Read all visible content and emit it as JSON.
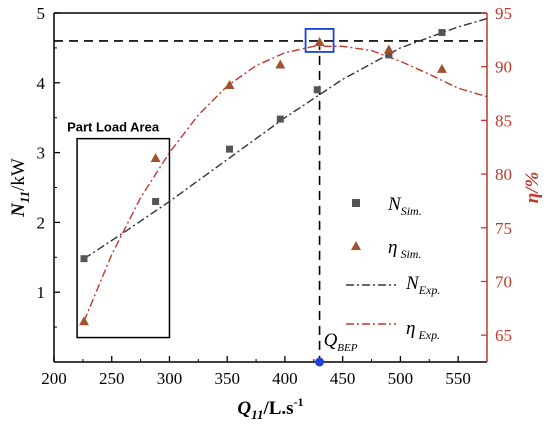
{
  "colors": {
    "left_axis": "#000000",
    "right_axis": "#c0392b",
    "n_marker": "#555555",
    "eta_marker": "#a0522d",
    "n_curve": "#333333",
    "eta_curve": "#c0392b",
    "bep_box": "#1f3fd6",
    "bep_dot": "#1f3fd6"
  },
  "chart_data": {
    "type": "line",
    "xlabel": "Q11/L.s-1",
    "ylabel_left": "N11/kW",
    "ylabel_right": "η/%",
    "xlim": [
      200,
      575
    ],
    "ylim_left": [
      0,
      5
    ],
    "ylim_right": [
      62.5,
      95
    ],
    "x_ticks": [
      200,
      250,
      300,
      350,
      400,
      450,
      500,
      550
    ],
    "y_ticks_left": [
      1,
      2,
      3,
      4,
      5
    ],
    "y_ticks_right": [
      65,
      70,
      75,
      80,
      85,
      90,
      95
    ],
    "grid": false,
    "series": [
      {
        "name": "N Sim.",
        "axis": "left",
        "style": "markers-square",
        "x": [
          226,
          288,
          352,
          396,
          428,
          490,
          536
        ],
        "y": [
          1.48,
          2.3,
          3.05,
          3.48,
          3.9,
          4.4,
          4.72
        ]
      },
      {
        "name": "η Sim.",
        "axis": "right",
        "style": "markers-triangle",
        "x": [
          226,
          288,
          352,
          396,
          430,
          490,
          536
        ],
        "y": [
          66.3,
          81.5,
          88.3,
          90.2,
          92.3,
          91.6,
          89.8
        ]
      },
      {
        "name": "N Exp.",
        "axis": "left",
        "style": "dash-dot",
        "x": [
          226,
          260,
          300,
          350,
          400,
          450,
          500,
          550,
          575
        ],
        "y": [
          1.48,
          1.85,
          2.3,
          2.9,
          3.5,
          4.05,
          4.5,
          4.8,
          4.92
        ]
      },
      {
        "name": "η Exp.",
        "axis": "right",
        "style": "dash-dot",
        "x": [
          226,
          250,
          275,
          300,
          325,
          350,
          375,
          400,
          425,
          450,
          475,
          500,
          525,
          550,
          575
        ],
        "y": [
          66.3,
          72.5,
          77.8,
          82.0,
          85.5,
          88.2,
          90.1,
          91.3,
          91.9,
          91.9,
          91.5,
          90.5,
          89.3,
          88.0,
          87.2
        ]
      }
    ],
    "hline_left": 4.6,
    "bep": {
      "x": 430,
      "label": "QBEP",
      "label_main": "Q",
      "label_sub": "BEP"
    },
    "part_load_box": {
      "x": [
        220,
        300
      ],
      "y_left": [
        0.35,
        3.2
      ],
      "label": "Part Load Area"
    },
    "legend": {
      "placement": "right",
      "items": [
        {
          "main": "N",
          "sub": "Sim."
        },
        {
          "main": "η",
          "sub": "Sim."
        },
        {
          "main": "N",
          "sub": "Exp."
        },
        {
          "main": "η",
          "sub": "Exp."
        }
      ]
    },
    "axis_titles": {
      "left": {
        "main": "N",
        "sub": "11",
        "rest": "/kW"
      },
      "right": {
        "main": "η/%"
      },
      "bottom": {
        "main": "Q",
        "sub": "11",
        "rest": "/L.s",
        "sup": "-1"
      }
    }
  }
}
